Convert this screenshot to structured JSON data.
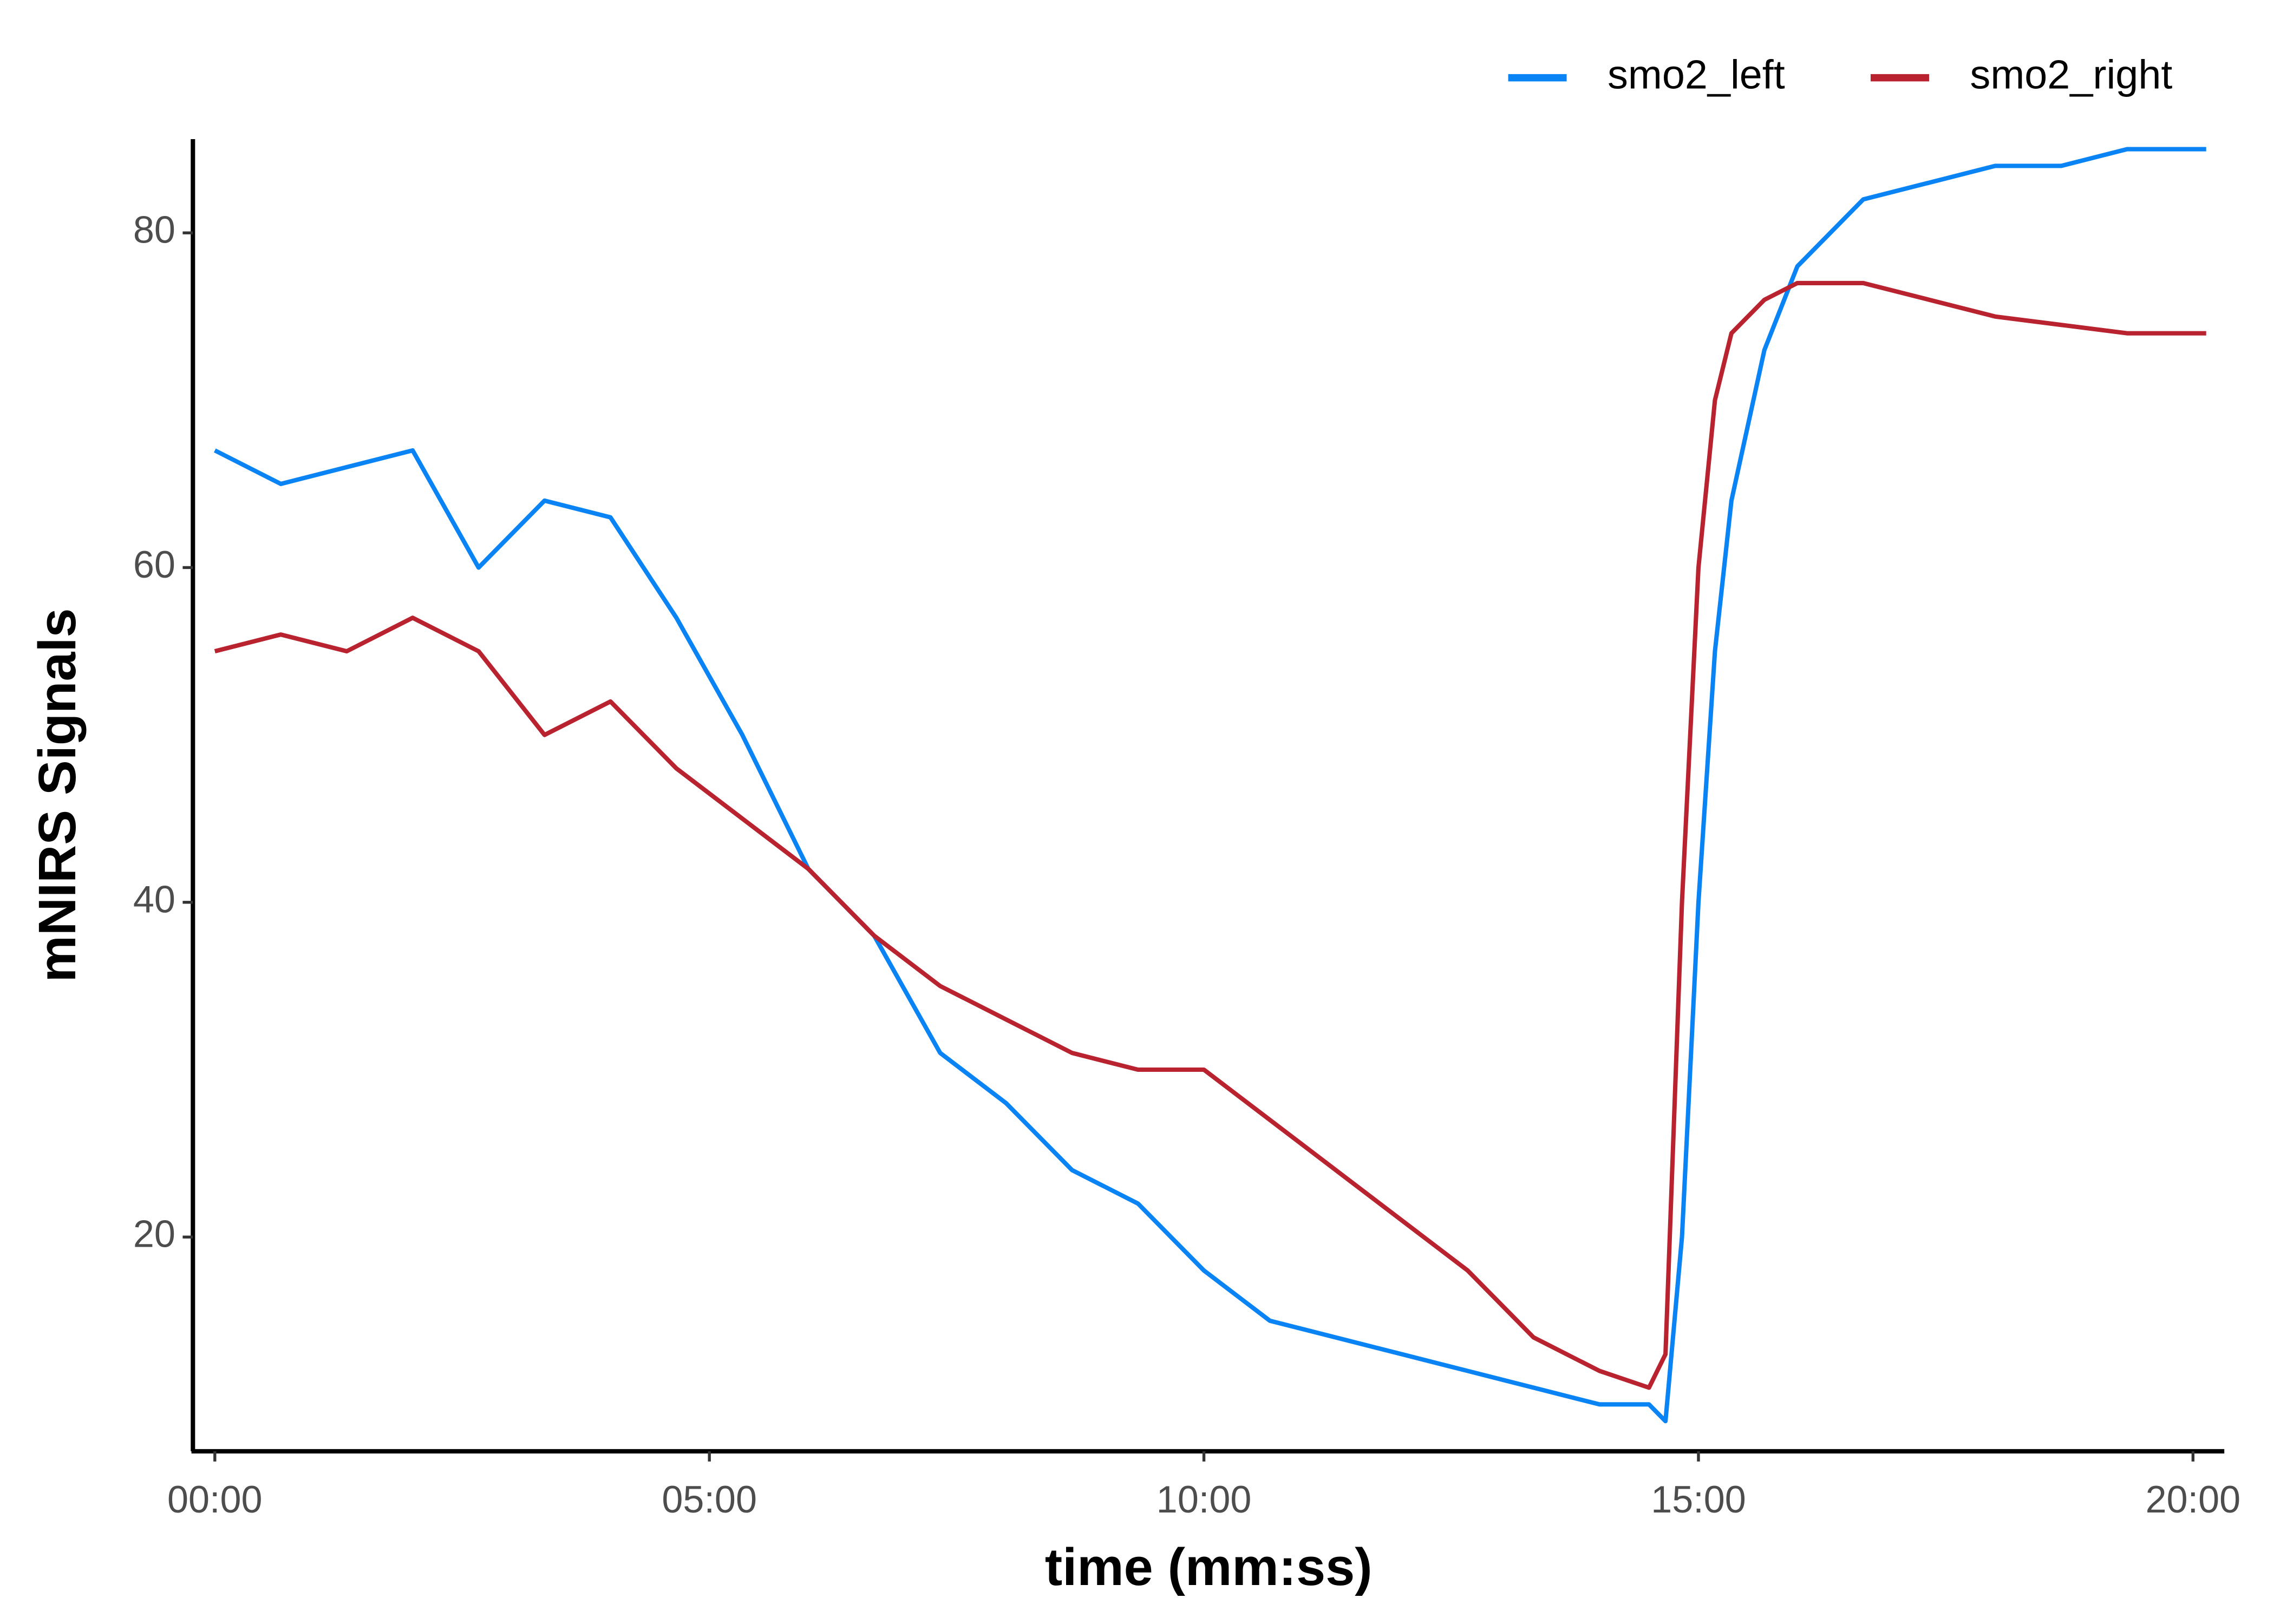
{
  "chart_data": {
    "type": "line",
    "x_label": "time (mm:ss)",
    "y_label": "mNIRS Signals",
    "x": [
      0,
      40,
      80,
      120,
      160,
      200,
      240,
      280,
      320,
      360,
      400,
      440,
      480,
      520,
      560,
      600,
      640,
      680,
      720,
      760,
      800,
      840,
      870,
      880,
      890,
      900,
      910,
      920,
      940,
      960,
      1000,
      1040,
      1080,
      1120,
      1160,
      1208
    ],
    "series": [
      {
        "name": "smo2_left",
        "color": "#0a84f5",
        "values": [
          67,
          65,
          66,
          67,
          60,
          64,
          63,
          57,
          50,
          42,
          38,
          31,
          28,
          24,
          22,
          18,
          15,
          14,
          13,
          12,
          11,
          10,
          10,
          9,
          20,
          40,
          55,
          64,
          73,
          78,
          82,
          83,
          84,
          84,
          85,
          85
        ]
      },
      {
        "name": "smo2_right",
        "color": "#b8232f",
        "values": [
          55,
          56,
          55,
          57,
          55,
          50,
          52,
          48,
          45,
          42,
          38,
          35,
          33,
          31,
          30,
          30,
          27,
          24,
          21,
          18,
          14,
          12,
          11,
          13,
          40,
          60,
          70,
          74,
          76,
          77,
          77,
          76,
          75,
          74.5,
          74,
          74
        ]
      }
    ],
    "xlim": [
      -13.3,
      1219
    ],
    "xticks": [
      {
        "value": 0,
        "label": "00:00"
      },
      {
        "value": 300,
        "label": "05:00"
      },
      {
        "value": 600,
        "label": "10:00"
      },
      {
        "value": 900,
        "label": "15:00"
      },
      {
        "value": 1200,
        "label": "20:00"
      }
    ],
    "ylim": [
      7.2,
      85.6
    ],
    "yticks": [
      20,
      40,
      60,
      80
    ],
    "grid": false,
    "legend": "top-right"
  }
}
